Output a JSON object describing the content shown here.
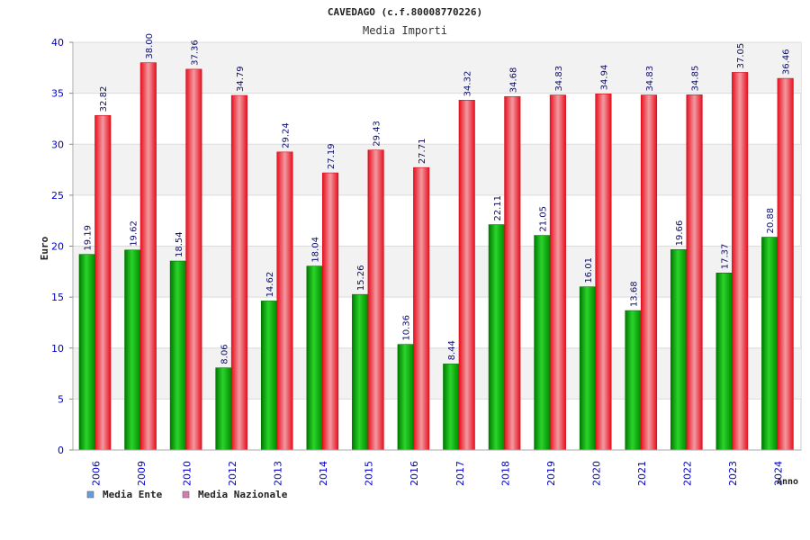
{
  "chart_data": {
    "type": "bar",
    "title": "CAVEDAGO (c.f.80008770226)",
    "subtitle": "Media Importi",
    "xlabel": "Anno",
    "ylabel": "Euro",
    "ylim": [
      0,
      40
    ],
    "yticks": [
      "0",
      "5",
      "10",
      "15",
      "20",
      "25",
      "30",
      "35",
      "40"
    ],
    "grid": true,
    "legend_position": "bottom-left",
    "categories": [
      "2006",
      "2009",
      "2010",
      "2012",
      "2013",
      "2014",
      "2015",
      "2016",
      "2017",
      "2018",
      "2019",
      "2020",
      "2021",
      "2022",
      "2023",
      "2024"
    ],
    "series": [
      {
        "name": "Media Ente",
        "color": "#11b411",
        "legend_color": "#6a9be0",
        "values": [
          19.19,
          19.62,
          18.54,
          8.06,
          14.62,
          18.04,
          15.26,
          10.36,
          8.44,
          22.11,
          21.05,
          16.01,
          13.68,
          19.66,
          17.37,
          20.88
        ],
        "labels": [
          "19.19",
          "19.62",
          "18.54",
          "8.06",
          "14.62",
          "18.04",
          "15.26",
          "10.36",
          "8.44",
          "22.11",
          "21.05",
          "16.01",
          "13.68",
          "19.66",
          "17.37",
          "20.88"
        ]
      },
      {
        "name": "Media Nazionale",
        "color": "#ec2a3a",
        "legend_color": "#d87ab0",
        "values": [
          32.82,
          38.0,
          37.36,
          34.79,
          29.24,
          27.19,
          29.43,
          27.71,
          34.32,
          34.68,
          34.83,
          34.94,
          34.83,
          34.85,
          37.05,
          36.46
        ],
        "labels": [
          "32.82",
          "38.00",
          "37.36",
          "34.79",
          "29.24",
          "27.19",
          "29.43",
          "27.71",
          "34.32",
          "34.68",
          "34.83",
          "34.94",
          "34.83",
          "34.85",
          "37.05",
          "36.46"
        ]
      }
    ]
  }
}
